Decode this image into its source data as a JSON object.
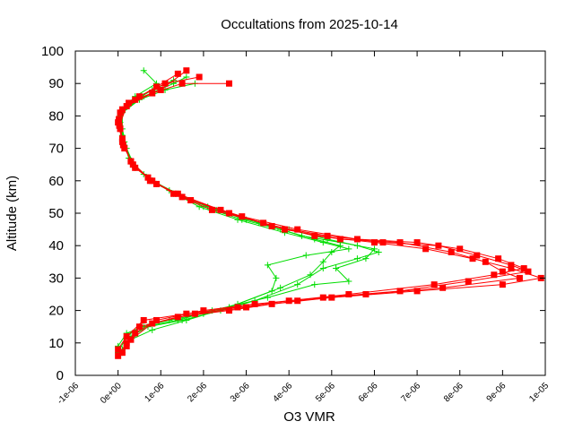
{
  "chart_data": {
    "type": "scatter",
    "title": "Occultations from 2025-10-14",
    "xlabel": "O3 VMR",
    "ylabel": "Altitude (km)",
    "xlim": [
      -1e-06,
      1e-05
    ],
    "ylim": [
      0,
      100
    ],
    "grid": false,
    "legend": "none",
    "x_ticks": [
      {
        "value": -1e-06,
        "label": "-1e-06"
      },
      {
        "value": 0,
        "label": "0e+00"
      },
      {
        "value": 1e-06,
        "label": "1e-06"
      },
      {
        "value": 2e-06,
        "label": "2e-06"
      },
      {
        "value": 3e-06,
        "label": "3e-06"
      },
      {
        "value": 4e-06,
        "label": "4e-06"
      },
      {
        "value": 5e-06,
        "label": "5e-06"
      },
      {
        "value": 6e-06,
        "label": "6e-06"
      },
      {
        "value": 7e-06,
        "label": "7e-06"
      },
      {
        "value": 8e-06,
        "label": "8e-06"
      },
      {
        "value": 9e-06,
        "label": "9e-06"
      },
      {
        "value": 1e-05,
        "label": "1e-05"
      }
    ],
    "y_ticks": [
      {
        "value": 0,
        "label": "0"
      },
      {
        "value": 10,
        "label": "10"
      },
      {
        "value": 20,
        "label": "20"
      },
      {
        "value": 30,
        "label": "30"
      },
      {
        "value": 40,
        "label": "40"
      },
      {
        "value": 50,
        "label": "50"
      },
      {
        "value": 60,
        "label": "60"
      },
      {
        "value": 70,
        "label": "70"
      },
      {
        "value": 80,
        "label": "80"
      },
      {
        "value": 90,
        "label": "90"
      },
      {
        "value": 100,
        "label": "100"
      }
    ],
    "series": [
      {
        "name": "green profiles",
        "color": "#00dd00",
        "marker": "plus",
        "profiles": [
          [
            [
              0.0,
              7
            ],
            [
              2e-07,
              12
            ],
            [
              5e-07,
              15
            ],
            [
              1.2e-06,
              17
            ],
            [
              2e-06,
              19
            ],
            [
              2.8e-06,
              22
            ],
            [
              3.8e-06,
              27
            ],
            [
              4.5e-06,
              31
            ],
            [
              4.8e-06,
              35
            ],
            [
              5e-06,
              38
            ],
            [
              5.2e-06,
              40
            ],
            [
              4.6e-06,
              42
            ],
            [
              3.8e-06,
              45
            ],
            [
              2.9e-06,
              48
            ],
            [
              2e-06,
              52
            ],
            [
              1.3e-06,
              56
            ],
            [
              7e-07,
              61
            ],
            [
              3e-07,
              66
            ],
            [
              1.5e-07,
              72
            ],
            [
              5e-08,
              78
            ],
            [
              1e-07,
              82
            ],
            [
              4e-07,
              86
            ],
            [
              9e-07,
              90
            ],
            [
              6e-07,
              94
            ]
          ],
          [
            [
              1e-07,
              8
            ],
            [
              3e-07,
              12
            ],
            [
              7e-07,
              15
            ],
            [
              1.5e-06,
              17
            ],
            [
              2.4e-06,
              20
            ],
            [
              3.2e-06,
              23
            ],
            [
              4.2e-06,
              28
            ],
            [
              4.8e-06,
              33
            ],
            [
              5.6e-06,
              36
            ],
            [
              6.1e-06,
              38
            ],
            [
              5.6e-06,
              40
            ],
            [
              4.9e-06,
              42
            ],
            [
              4e-06,
              45
            ],
            [
              3e-06,
              48
            ],
            [
              2.1e-06,
              52
            ],
            [
              1.4e-06,
              56
            ],
            [
              8e-07,
              60
            ],
            [
              3.5e-07,
              65
            ],
            [
              1.5e-07,
              71
            ],
            [
              5e-08,
              77
            ],
            [
              1.5e-07,
              82
            ],
            [
              6e-07,
              86
            ],
            [
              1.3e-06,
              90
            ],
            [
              1.6e-06,
              92
            ]
          ],
          [
            [
              0.0,
              9
            ],
            [
              2e-07,
              13
            ],
            [
              6e-07,
              15
            ],
            [
              1.4e-06,
              17
            ],
            [
              2.2e-06,
              20
            ],
            [
              3.5e-06,
              24
            ],
            [
              4.6e-06,
              28
            ],
            [
              5.4e-06,
              29
            ],
            [
              5.1e-06,
              33
            ],
            [
              5.8e-06,
              36
            ],
            [
              6e-06,
              39
            ],
            [
              5.2e-06,
              41
            ],
            [
              4.3e-06,
              43
            ],
            [
              3.3e-06,
              47
            ],
            [
              2.3e-06,
              51
            ],
            [
              1.5e-06,
              55
            ],
            [
              9e-07,
              59
            ],
            [
              4e-07,
              64
            ],
            [
              2e-07,
              70
            ],
            [
              1e-07,
              76
            ],
            [
              1e-07,
              81
            ],
            [
              5e-07,
              85
            ],
            [
              1.1e-06,
              88
            ],
            [
              1.8e-06,
              90
            ]
          ],
          [
            [
              1e-07,
              7
            ],
            [
              3e-07,
              11
            ],
            [
              8e-07,
              14
            ],
            [
              1.6e-06,
              17
            ],
            [
              2.6e-06,
              21
            ],
            [
              3.6e-06,
              26
            ],
            [
              3.7e-06,
              30
            ],
            [
              3.5e-06,
              34
            ],
            [
              4.4e-06,
              37
            ],
            [
              5.4e-06,
              39
            ],
            [
              4.8e-06,
              41
            ],
            [
              3.9e-06,
              44
            ],
            [
              2.8e-06,
              48
            ],
            [
              1.9e-06,
              52
            ],
            [
              1.2e-06,
              57
            ],
            [
              6e-07,
              62
            ],
            [
              2.5e-07,
              67
            ],
            [
              1e-07,
              74
            ],
            [
              5e-08,
              80
            ],
            [
              3e-07,
              84
            ],
            [
              8e-07,
              88
            ],
            [
              1.3e-06,
              91
            ]
          ]
        ]
      },
      {
        "name": "red profiles",
        "color": "#ff0000",
        "marker": "square",
        "profiles": [
          [
            [
              0.0,
              6
            ],
            [
              2e-07,
              10
            ],
            [
              5e-07,
              15
            ],
            [
              1.4e-06,
              18
            ],
            [
              2.6e-06,
              20
            ],
            [
              3.6e-06,
              22
            ],
            [
              5e-06,
              24
            ],
            [
              7e-06,
              26
            ],
            [
              9e-06,
              28
            ],
            [
              9.9e-06,
              30
            ],
            [
              9.2e-06,
              33
            ],
            [
              8.3e-06,
              36
            ],
            [
              7.2e-06,
              39
            ],
            [
              6e-06,
              41
            ],
            [
              4.6e-06,
              43
            ],
            [
              3.4e-06,
              47
            ],
            [
              2.2e-06,
              51
            ],
            [
              1.3e-06,
              56
            ],
            [
              7e-07,
              61
            ],
            [
              3e-07,
              66
            ],
            [
              1e-07,
              72
            ],
            [
              0.0,
              78
            ],
            [
              1e-07,
              82
            ],
            [
              5e-07,
              86
            ],
            [
              1.1e-06,
              90
            ],
            [
              1.9e-06,
              92
            ]
          ],
          [
            [
              1e-07,
              7
            ],
            [
              3e-07,
              11
            ],
            [
              8e-07,
              16
            ],
            [
              1.8e-06,
              19
            ],
            [
              3e-06,
              21
            ],
            [
              4.2e-06,
              23
            ],
            [
              5.8e-06,
              25
            ],
            [
              7.6e-06,
              27
            ],
            [
              9.4e-06,
              30
            ],
            [
              9e-06,
              32
            ],
            [
              8.6e-06,
              35
            ],
            [
              7.8e-06,
              38
            ],
            [
              6.6e-06,
              41
            ],
            [
              5.2e-06,
              42
            ],
            [
              3.9e-06,
              45
            ],
            [
              2.6e-06,
              50
            ],
            [
              1.5e-06,
              55
            ],
            [
              8e-07,
              60
            ],
            [
              3.5e-07,
              65
            ],
            [
              1.2e-07,
              71
            ],
            [
              3e-08,
              77
            ],
            [
              2e-07,
              83
            ],
            [
              8e-07,
              87
            ],
            [
              1.5e-06,
              90
            ],
            [
              2.6e-06,
              90
            ]
          ],
          [
            [
              0.0,
              8
            ],
            [
              2e-07,
              12
            ],
            [
              6e-07,
              17
            ],
            [
              1.6e-06,
              19
            ],
            [
              2.8e-06,
              21
            ],
            [
              4e-06,
              23
            ],
            [
              5.4e-06,
              25
            ],
            [
              7.4e-06,
              28
            ],
            [
              8.8e-06,
              31
            ],
            [
              9.5e-06,
              33
            ],
            [
              8.9e-06,
              36
            ],
            [
              8e-06,
              39
            ],
            [
              7e-06,
              41
            ],
            [
              5.6e-06,
              42
            ],
            [
              4.2e-06,
              45
            ],
            [
              2.9e-06,
              49
            ],
            [
              1.7e-06,
              54
            ],
            [
              9e-07,
              59
            ],
            [
              4e-07,
              64
            ],
            [
              1.5e-07,
              70
            ],
            [
              5e-08,
              76
            ],
            [
              5e-08,
              81
            ],
            [
              4e-07,
              85
            ],
            [
              1e-06,
              88
            ],
            [
              1.6e-06,
              94
            ]
          ],
          [
            [
              2e-07,
              9
            ],
            [
              4e-07,
              13
            ],
            [
              9e-07,
              17
            ],
            [
              2e-06,
              20
            ],
            [
              3.2e-06,
              22
            ],
            [
              4.8e-06,
              24
            ],
            [
              6.6e-06,
              26
            ],
            [
              8.2e-06,
              29
            ],
            [
              9.6e-06,
              32
            ],
            [
              9.2e-06,
              34
            ],
            [
              8.4e-06,
              37
            ],
            [
              7.5e-06,
              40
            ],
            [
              6.2e-06,
              41
            ],
            [
              4.9e-06,
              43
            ],
            [
              3.6e-06,
              46
            ],
            [
              2.4e-06,
              51
            ],
            [
              1.4e-06,
              56
            ],
            [
              7.5e-07,
              60
            ],
            [
              3e-07,
              66
            ],
            [
              1e-07,
              73
            ],
            [
              2e-08,
              79
            ],
            [
              2.5e-07,
              84
            ],
            [
              9e-07,
              89
            ],
            [
              1.4e-06,
              93
            ]
          ]
        ]
      }
    ]
  }
}
